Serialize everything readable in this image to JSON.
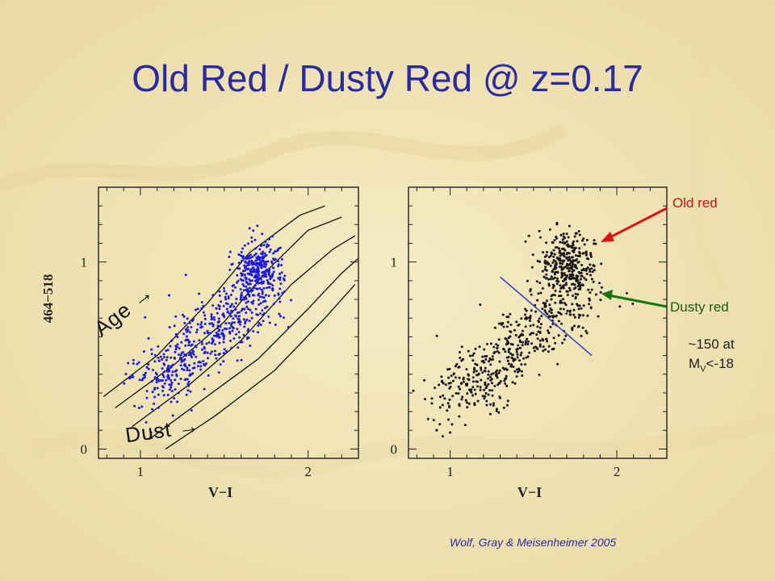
{
  "slide": {
    "title": "Old Red / Dusty Red @ z=0.17",
    "credit": "Wolf, Gray & Meisenheimer 2005"
  },
  "colors": {
    "background": "#f3e7bd",
    "title": "#2a2aa6",
    "left_points": "#1a1ae6",
    "right_points": "#111111",
    "old_red_arrow": "#dd1111",
    "dusty_red_arrow": "#117711",
    "divider_line": "#3344cc"
  },
  "annotations": {
    "old_red": "Old red",
    "dusty_red": "Dusty red",
    "count_line1": "~150 at",
    "count_M": "M",
    "count_sub": "V",
    "count_rest": "<-18",
    "age": "Age →",
    "dust": "Dust →"
  },
  "chart_data": [
    {
      "type": "scatter",
      "xlabel": "V−I",
      "ylabel": "464−518",
      "xlim": [
        0.75,
        2.3
      ],
      "ylim": [
        -0.05,
        1.4
      ],
      "x_ticks": [
        1,
        2
      ],
      "y_ticks": [
        0,
        1
      ],
      "point_color": "#1a1ae6",
      "clusters": [
        {
          "label": "red sequence clump",
          "center": [
            1.7,
            0.97
          ],
          "spread": [
            0.07,
            0.08
          ],
          "approx_count": 260
        },
        {
          "label": "blue cloud / diagonal",
          "from": [
            1.05,
            0.35
          ],
          "to": [
            1.75,
            0.85
          ],
          "approx_count": 520
        }
      ],
      "model_tracks": [
        {
          "points": [
            [
              0.78,
              0.28
            ],
            [
              1.1,
              0.5
            ],
            [
              1.4,
              0.78
            ],
            [
              1.65,
              1.05
            ],
            [
              1.95,
              1.25
            ],
            [
              2.1,
              1.3
            ]
          ]
        },
        {
          "points": [
            [
              0.85,
              0.22
            ],
            [
              1.2,
              0.45
            ],
            [
              1.5,
              0.68
            ],
            [
              1.75,
              0.95
            ],
            [
              2.0,
              1.17
            ],
            [
              2.2,
              1.24
            ]
          ]
        },
        {
          "points": [
            [
              0.95,
              0.12
            ],
            [
              1.3,
              0.35
            ],
            [
              1.6,
              0.58
            ],
            [
              1.9,
              0.88
            ],
            [
              2.15,
              1.07
            ],
            [
              2.28,
              1.14
            ]
          ]
        },
        {
          "points": [
            [
              1.05,
              0.05
            ],
            [
              1.35,
              0.25
            ],
            [
              1.7,
              0.48
            ],
            [
              2.0,
              0.75
            ],
            [
              2.2,
              0.94
            ],
            [
              2.3,
              1.02
            ]
          ]
        },
        {
          "points": [
            [
              1.15,
              0.0
            ],
            [
              1.45,
              0.18
            ],
            [
              1.8,
              0.42
            ],
            [
              2.1,
              0.7
            ],
            [
              2.28,
              0.88
            ]
          ]
        }
      ]
    },
    {
      "type": "scatter",
      "xlabel": "V−I",
      "ylabel": "",
      "xlim": [
        0.75,
        2.3
      ],
      "ylim": [
        -0.05,
        1.4
      ],
      "x_ticks": [
        1,
        2
      ],
      "y_ticks": [
        0,
        1
      ],
      "point_color": "#111111",
      "clusters": [
        {
          "label": "Old red",
          "center": [
            1.7,
            1.0
          ],
          "spread": [
            0.08,
            0.08
          ],
          "approx_count": 280
        },
        {
          "label": "Dusty red / blue diagonal",
          "from": [
            1.0,
            0.25
          ],
          "to": [
            1.8,
            0.85
          ],
          "approx_count": 520
        }
      ],
      "divider": {
        "from": [
          1.3,
          0.92
        ],
        "to": [
          1.85,
          0.5
        ]
      }
    }
  ]
}
